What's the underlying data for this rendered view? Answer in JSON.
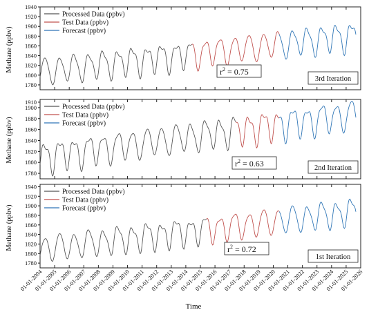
{
  "figure": {
    "ylabel": "Methane (ppbv)",
    "xlabel": "Time",
    "x_tick_labels": [
      "01-01-2004",
      "01-01-2005",
      "01-01-2006",
      "01-01-2007",
      "01-01-2008",
      "01-01-2009",
      "01-01-2010",
      "01-01-2011",
      "01-01-2012",
      "01-01-2013",
      "01-01-2014",
      "01-01-2015",
      "01-01-2016",
      "01-01-2017",
      "01-01-2018",
      "01-01-2019",
      "01-01-2020",
      "01-01-2021",
      "01-01-2022",
      "01-01-2023",
      "01-01-2024",
      "01-01-2025",
      "01-01-2026"
    ]
  },
  "colors": {
    "processed": "#555555",
    "test": "#c0504d",
    "forecast": "#2e75b6"
  },
  "chart_data": [
    {
      "type": "line",
      "panel": "3rd Iteration",
      "badge": "3rd Iteration",
      "r2_text": "r",
      "r2_sup": "2",
      "r2_value": " = 0.75",
      "ylabel": "Methane (ppbv)",
      "ylim": [
        1770,
        1940
      ],
      "yticks": [
        1780,
        1800,
        1820,
        1840,
        1860,
        1880,
        1900,
        1920,
        1940
      ],
      "legend": [
        "Processed Data (ppbv)",
        "Test Data (ppbv)",
        "Forecast (ppbv)"
      ],
      "legend_position": "top-left",
      "x_range": [
        "2004-01-01",
        "2026-01-01"
      ],
      "segments": {
        "processed": [
          "2004-01-01",
          "2014-06-01"
        ],
        "test": [
          "2014-06-01",
          "2020-06-01"
        ],
        "forecast": [
          "2020-06-01",
          "2025-09-01"
        ]
      },
      "trend": {
        "start": 1808,
        "slope_per_year": 3.4
      },
      "seasonal_amplitude": 26
    },
    {
      "type": "line",
      "panel": "2nd Iteration",
      "badge": "2nd Iteration",
      "r2_text": "r",
      "r2_sup": "2",
      "r2_value": " = 0.63",
      "ylabel": "Methane (ppbv)",
      "ylim": [
        1770,
        1915
      ],
      "yticks": [
        1780,
        1800,
        1820,
        1840,
        1860,
        1880,
        1900,
        1910
      ],
      "legend": [
        "Processed Data (ppbv)",
        "Test Data (ppbv)",
        "Forecast (ppbv)"
      ],
      "legend_position": "top-left",
      "x_range": [
        "2004-01-01",
        "2026-01-01"
      ],
      "segments": {
        "processed": [
          "2004-01-01",
          "2017-06-01"
        ],
        "test": [
          "2017-06-01",
          "2020-06-01"
        ],
        "forecast": [
          "2020-06-01",
          "2025-09-01"
        ]
      },
      "trend": {
        "start": 1810,
        "slope_per_year": 3.6
      },
      "seasonal_amplitude": 25
    },
    {
      "type": "line",
      "panel": "1st Iteration",
      "badge": "1st Iteration",
      "r2_text": "r",
      "r2_sup": "2",
      "r2_value": " = 0.72",
      "ylabel": "Methane (ppbv)",
      "ylim": [
        1770,
        1945
      ],
      "yticks": [
        1780,
        1800,
        1820,
        1840,
        1860,
        1880,
        1900,
        1920,
        1940
      ],
      "legend": [
        "Processed Data (ppbv)",
        "Test Data (ppbv)",
        "Forecast (ppbv)"
      ],
      "legend_position": "top-left",
      "x_range": [
        "2004-01-01",
        "2026-01-01"
      ],
      "segments": {
        "processed": [
          "2004-01-01",
          "2015-06-01"
        ],
        "test": [
          "2015-06-01",
          "2020-06-01"
        ],
        "forecast": [
          "2020-06-01",
          "2025-09-01"
        ]
      },
      "trend": {
        "start": 1810,
        "slope_per_year": 3.6
      },
      "seasonal_amplitude": 26
    }
  ]
}
